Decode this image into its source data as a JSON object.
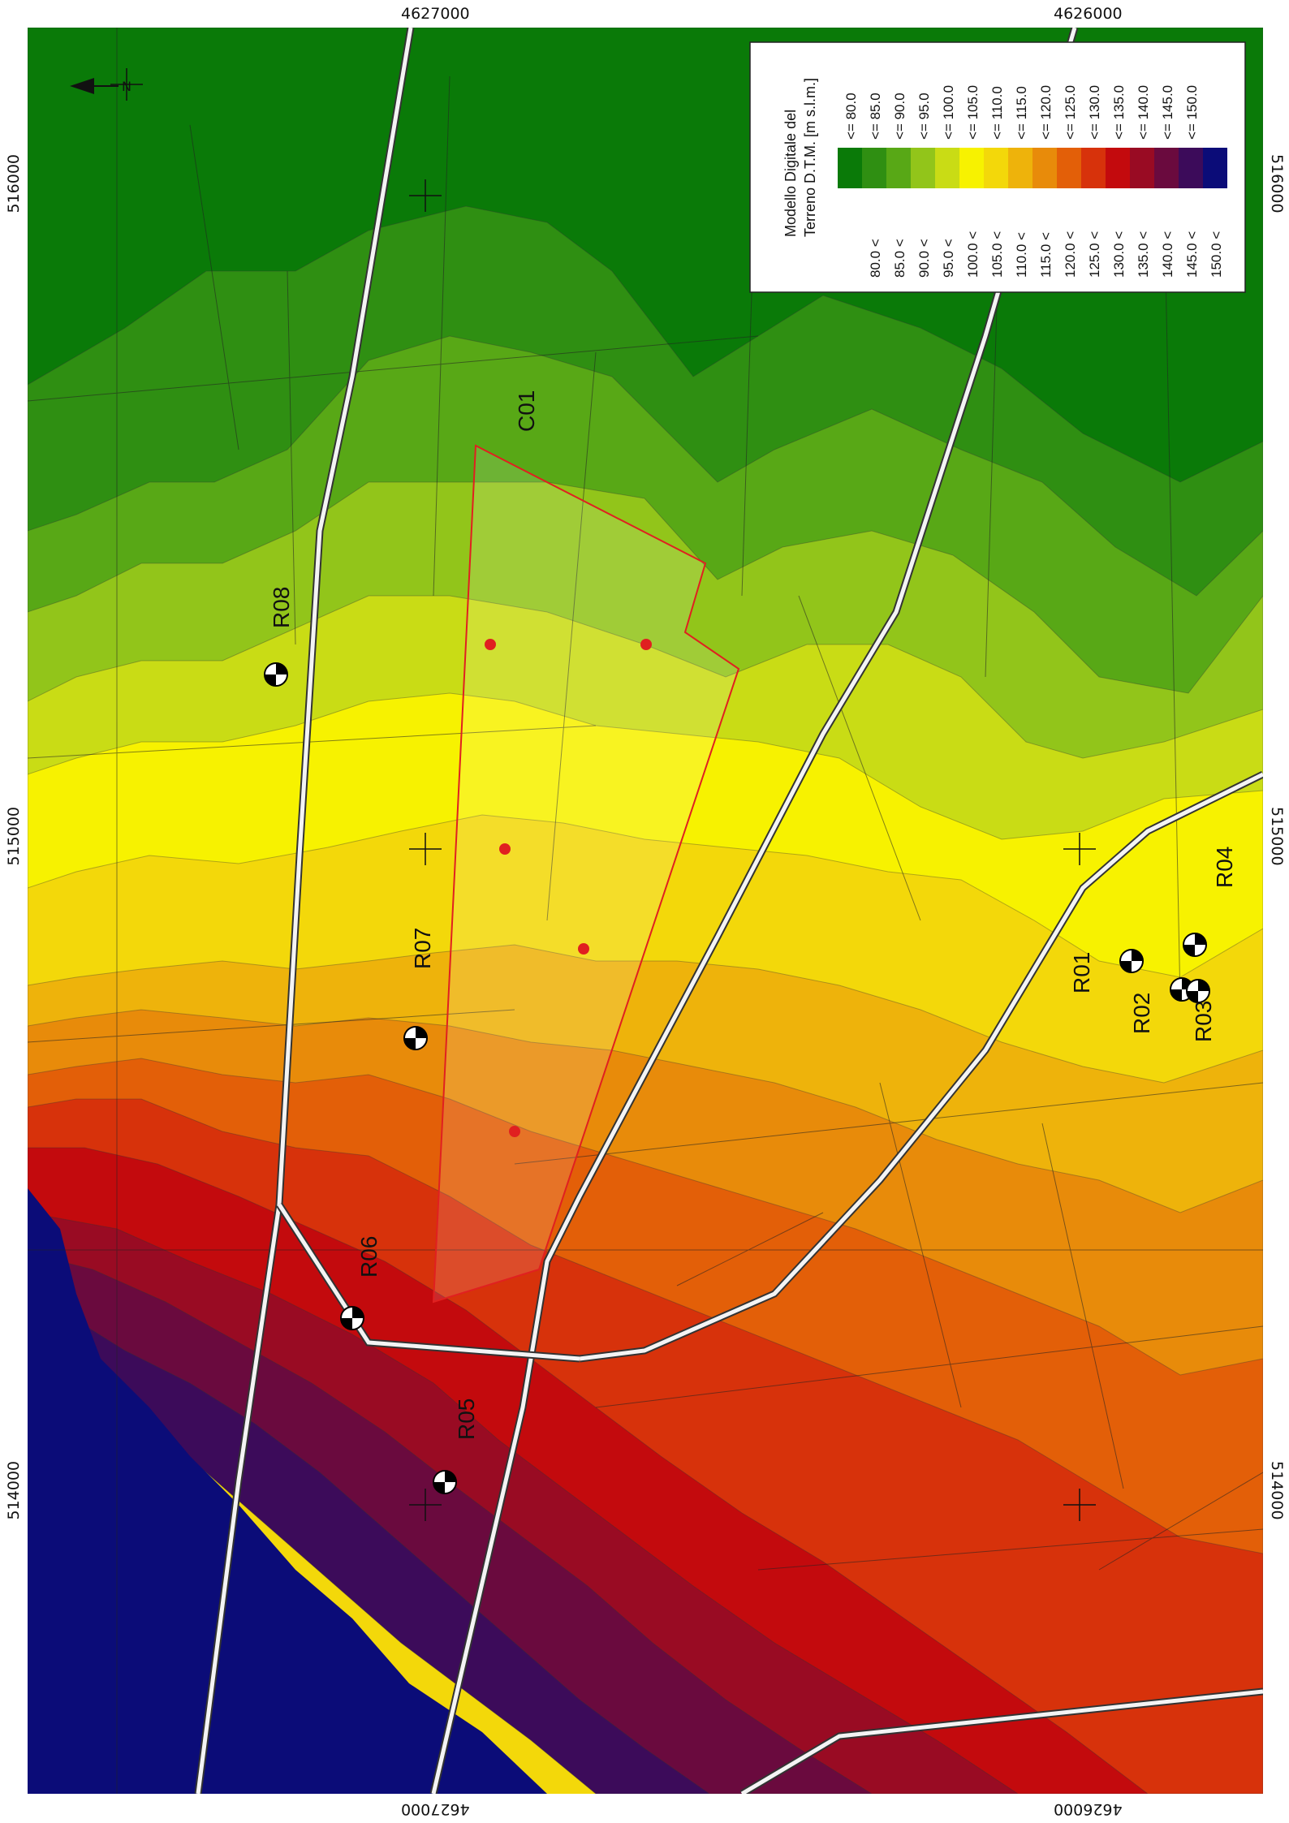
{
  "colors": {
    "classes": [
      "#0a7a08",
      "#2f8f12",
      "#58a816",
      "#92c51a",
      "#c9dc15",
      "#f7f200",
      "#f3d80a",
      "#eeb30b",
      "#e88b0a",
      "#e35f08",
      "#d7320b",
      "#c30a0d",
      "#990b23",
      "#6a0a3e",
      "#3c0b5a",
      "#0b0c78"
    ],
    "route": "#e02020",
    "road_fill": "#f4f4f4",
    "road_edge": "#333333"
  },
  "map": {
    "coords": {
      "top": [
        "4627000",
        "4626000"
      ],
      "bottom": [
        "4627000",
        "4626000"
      ],
      "left": [
        "516000",
        "515000",
        "514000"
      ],
      "right": [
        "516000",
        "515000",
        "514000"
      ]
    },
    "receptors": [
      {
        "label": "R01",
        "icon": "receptor-target-icon"
      },
      {
        "label": "R02",
        "icon": "receptor-target-icon"
      },
      {
        "label": "R03",
        "icon": "receptor-target-icon"
      },
      {
        "label": "R04",
        "icon": "receptor-target-icon"
      },
      {
        "label": "R05",
        "icon": "receptor-target-icon"
      },
      {
        "label": "R06",
        "icon": "receptor-target-icon"
      },
      {
        "label": "R07",
        "icon": "receptor-target-icon"
      },
      {
        "label": "R08",
        "icon": "receptor-target-icon"
      }
    ],
    "road_label": "C01",
    "north_icon": "north-arrow-icon",
    "legend": {
      "title_line1": "Modello Digitale del",
      "title_line2": "Terreno D.T.M. [m s.l.m.]",
      "rows": [
        {
          "low": "",
          "op1": "",
          "op2": "<=",
          "high": "80.0"
        },
        {
          "low": "80.0",
          "op1": "<",
          "op2": "<=",
          "high": "85.0"
        },
        {
          "low": "85.0",
          "op1": "<",
          "op2": "<=",
          "high": "90.0"
        },
        {
          "low": "90.0",
          "op1": "<",
          "op2": "<=",
          "high": "95.0"
        },
        {
          "low": "95.0",
          "op1": "<",
          "op2": "<=",
          "high": "100.0"
        },
        {
          "low": "100.0",
          "op1": "<",
          "op2": "<=",
          "high": "105.0"
        },
        {
          "low": "105.0",
          "op1": "<",
          "op2": "<=",
          "high": "110.0"
        },
        {
          "low": "110.0",
          "op1": "<",
          "op2": "<=",
          "high": "115.0"
        },
        {
          "low": "115.0",
          "op1": "<",
          "op2": "<=",
          "high": "120.0"
        },
        {
          "low": "120.0",
          "op1": "<",
          "op2": "<=",
          "high": "125.0"
        },
        {
          "low": "125.0",
          "op1": "<",
          "op2": "<=",
          "high": "130.0"
        },
        {
          "low": "130.0",
          "op1": "<",
          "op2": "<=",
          "high": "135.0"
        },
        {
          "low": "135.0",
          "op1": "<",
          "op2": "<=",
          "high": "140.0"
        },
        {
          "low": "140.0",
          "op1": "<",
          "op2": "<=",
          "high": "145.0"
        },
        {
          "low": "145.0",
          "op1": "<",
          "op2": "<=",
          "high": "150.0"
        },
        {
          "low": "150.0",
          "op1": "<",
          "op2": "",
          "high": ""
        }
      ]
    }
  }
}
